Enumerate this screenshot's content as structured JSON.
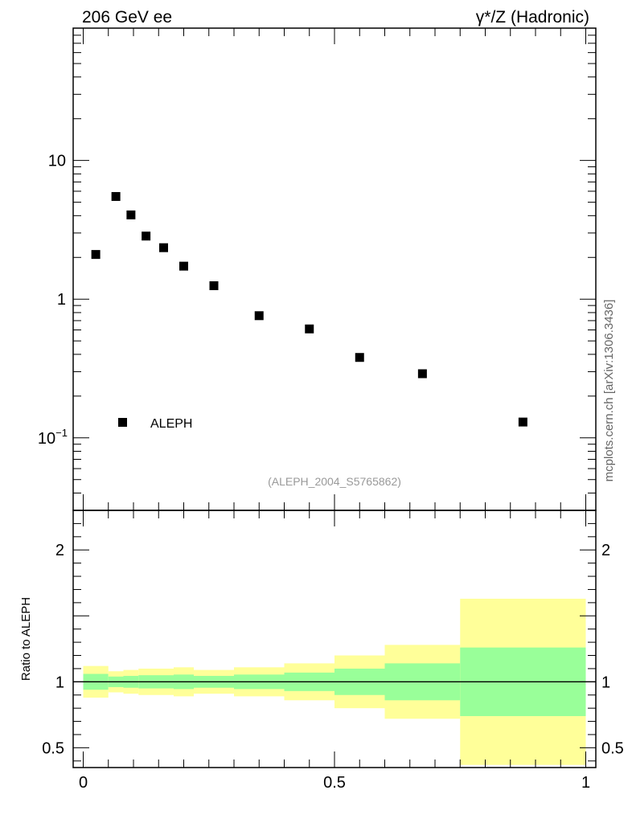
{
  "header": {
    "left_title": "206 GeV ee",
    "right_title": "γ*/Z (Hadronic)"
  },
  "watermark": "mcplots.cern.ch [arXiv:1306.3436]",
  "analysis_id": "(ALEPH_2004_S5765862)",
  "colors": {
    "marker": "#000000",
    "band_inner": "#99ff99",
    "band_outer": "#ffff99",
    "axis": "#000000",
    "analysis_text": "#999999",
    "watermark_text": "#666666"
  },
  "chart_data": [
    {
      "panel": "main",
      "type": "scatter",
      "yscale": "log",
      "xlim": [
        -0.02,
        1.02
      ],
      "ylim": [
        0.03,
        90
      ],
      "ytick_labels": [
        {
          "value": 10,
          "label": "10"
        },
        {
          "value": 1,
          "label": "1"
        },
        {
          "value": 0.1,
          "label": "10",
          "sup": "−1"
        }
      ],
      "series": [
        {
          "name": "ALEPH",
          "marker": "square",
          "x": [
            0.025,
            0.065,
            0.095,
            0.125,
            0.16,
            0.2,
            0.26,
            0.35,
            0.45,
            0.55,
            0.675,
            0.875
          ],
          "y": [
            2.1,
            5.5,
            4.05,
            2.85,
            2.35,
            1.73,
            1.25,
            0.76,
            0.61,
            0.38,
            0.29,
            0.13
          ]
        }
      ],
      "legend": {
        "label": "ALEPH",
        "placement": "bottom-left"
      }
    },
    {
      "panel": "ratio",
      "type": "area",
      "ylabel": "Ratio to ALEPH",
      "xlim": [
        -0.02,
        1.02
      ],
      "ylim": [
        0.35,
        2.3
      ],
      "reference_line": 1,
      "ytick_labels": [
        {
          "value": 2,
          "label": "2"
        },
        {
          "value": 1,
          "label": "1"
        },
        {
          "value": 0.5,
          "label": "0.5"
        }
      ],
      "xtick_labels": [
        {
          "value": 0,
          "label": "0"
        },
        {
          "value": 0.5,
          "label": "0.5"
        },
        {
          "value": 1,
          "label": "1"
        }
      ],
      "bins": [
        {
          "x0": 0.0,
          "x1": 0.05,
          "outer": [
            0.88,
            1.12
          ],
          "inner": [
            0.94,
            1.06
          ]
        },
        {
          "x0": 0.05,
          "x1": 0.08,
          "outer": [
            0.92,
            1.08
          ],
          "inner": [
            0.96,
            1.04
          ]
        },
        {
          "x0": 0.08,
          "x1": 0.11,
          "outer": [
            0.91,
            1.09
          ],
          "inner": [
            0.955,
            1.045
          ]
        },
        {
          "x0": 0.11,
          "x1": 0.14,
          "outer": [
            0.9,
            1.1
          ],
          "inner": [
            0.95,
            1.05
          ]
        },
        {
          "x0": 0.14,
          "x1": 0.18,
          "outer": [
            0.9,
            1.1
          ],
          "inner": [
            0.95,
            1.05
          ]
        },
        {
          "x0": 0.18,
          "x1": 0.22,
          "outer": [
            0.89,
            1.11
          ],
          "inner": [
            0.945,
            1.055
          ]
        },
        {
          "x0": 0.22,
          "x1": 0.3,
          "outer": [
            0.91,
            1.09
          ],
          "inner": [
            0.955,
            1.045
          ]
        },
        {
          "x0": 0.3,
          "x1": 0.4,
          "outer": [
            0.89,
            1.11
          ],
          "inner": [
            0.945,
            1.055
          ]
        },
        {
          "x0": 0.4,
          "x1": 0.5,
          "outer": [
            0.86,
            1.14
          ],
          "inner": [
            0.93,
            1.07
          ]
        },
        {
          "x0": 0.5,
          "x1": 0.6,
          "outer": [
            0.8,
            1.2
          ],
          "inner": [
            0.9,
            1.1
          ]
        },
        {
          "x0": 0.6,
          "x1": 0.75,
          "outer": [
            0.72,
            1.28
          ],
          "inner": [
            0.86,
            1.14
          ]
        },
        {
          "x0": 0.75,
          "x1": 1.0,
          "outer": [
            0.37,
            1.63
          ],
          "inner": [
            0.74,
            1.26
          ]
        }
      ]
    }
  ]
}
